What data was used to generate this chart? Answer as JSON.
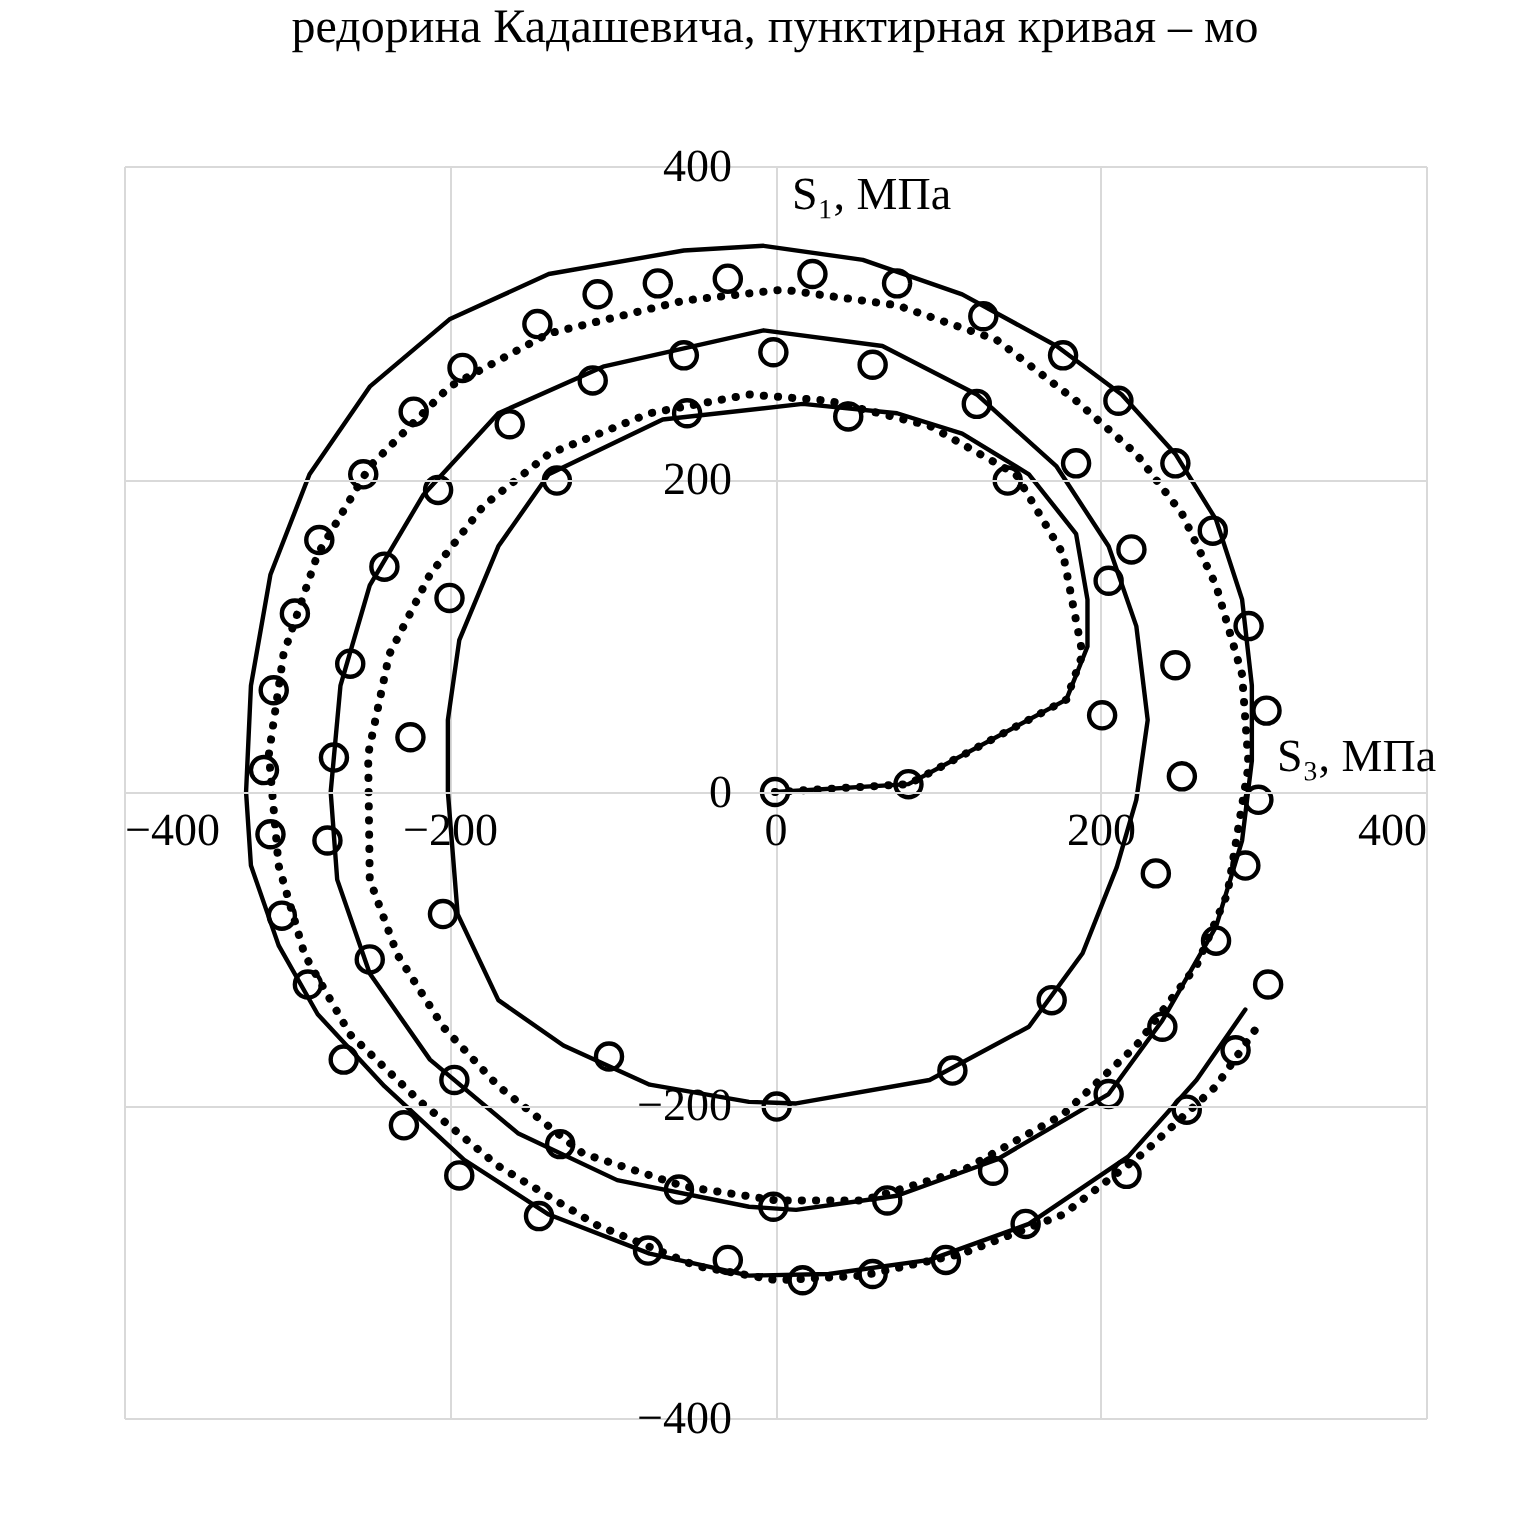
{
  "chart_data": {
    "type": "line",
    "xlabel": "S₃, МПа",
    "ylabel": "S₁, МПа",
    "xlim": [
      -400,
      400
    ],
    "ylim": [
      -400,
      400
    ],
    "xticks": [
      -400,
      -200,
      0,
      200,
      400
    ],
    "yticks": [
      -400,
      -200,
      0,
      200,
      400
    ],
    "grid": true,
    "annotations": [
      "редорина Кадашевича, пунктирная кривая – мо"
    ],
    "series": [
      {
        "color": "#000000",
        "line_style": "solid",
        "marker": "none",
        "x": [
          0,
          82,
          179,
          192,
          192,
          185,
          156,
          115,
          75,
          17,
          -69,
          -139,
          -170,
          -194,
          -201,
          -201,
          -195,
          -170,
          -130,
          -77,
          -16,
          13,
          95,
          156,
          189,
          210,
          222,
          229,
          222,
          205,
          173,
          124,
          66,
          -7,
          -105,
          -170,
          -216,
          -249,
          -267,
          -273,
          -269,
          -249,
          -212,
          -158,
          -97,
          -16,
          13,
          75,
          136,
          205,
          238,
          271,
          287,
          293,
          293,
          287,
          271,
          246,
          213,
          173,
          115,
          54,
          -7,
          -56,
          -139,
          -200,
          -249,
          -286,
          -310,
          -322,
          -325,
          -322,
          -305,
          -281,
          -240,
          -191,
          -139,
          -77,
          -16,
          33,
          95,
          156,
          217,
          259,
          289
        ],
        "values": [
          0,
          5,
          59,
          93,
          123,
          165,
          203,
          229,
          242,
          248,
          238,
          203,
          157,
          97,
          46,
          0,
          -78,
          -133,
          -162,
          -187,
          -198,
          -199,
          -184,
          -150,
          -103,
          -48,
          -5,
          46,
          106,
          157,
          208,
          254,
          285,
          295,
          272,
          242,
          190,
          132,
          68,
          0,
          -56,
          -116,
          -171,
          -218,
          -248,
          -265,
          -267,
          -258,
          -235,
          -193,
          -146,
          -86,
          -31,
          20,
          68,
          123,
          174,
          216,
          254,
          285,
          318,
          340,
          349,
          346,
          331,
          302,
          259,
          203,
          139,
          68,
          0,
          -47,
          -98,
          -142,
          -188,
          -235,
          -270,
          -295,
          -309,
          -308,
          -299,
          -276,
          -233,
          -184,
          -139
        ]
      },
      {
        "color": "#000000",
        "line_style": "dotted",
        "marker": "none",
        "x": [
          0,
          82,
          179,
          189,
          177,
          148,
          95,
          33,
          -16,
          -77,
          -139,
          -179,
          -212,
          -237,
          -250,
          -249,
          -232,
          -204,
          -170,
          -118,
          -56,
          1,
          54,
          115,
          177,
          222,
          259,
          278,
          291,
          287,
          271,
          250,
          222,
          185,
          136,
          75,
          5,
          -56,
          -139,
          -200,
          -249,
          -281,
          -302,
          -311,
          -305,
          -289,
          -261,
          -219,
          -170,
          -109,
          -48,
          1,
          54,
          115,
          177,
          226,
          271,
          295
        ],
        "values": [
          0,
          5,
          59,
          88,
          152,
          203,
          234,
          250,
          254,
          242,
          216,
          183,
          139,
          88,
          24,
          -56,
          -104,
          -150,
          -188,
          -231,
          -252,
          -261,
          -261,
          -242,
          -206,
          -162,
          -111,
          -65,
          17,
          75,
          132,
          178,
          216,
          250,
          289,
          311,
          321,
          314,
          293,
          259,
          208,
          152,
          88,
          24,
          -47,
          -104,
          -155,
          -197,
          -239,
          -277,
          -303,
          -312,
          -309,
          -295,
          -270,
          -231,
          -188,
          -152
        ]
      },
      {
        "type": "scatter",
        "color": "#000000",
        "marker": "circle",
        "x": [
          0,
          82,
          201,
          205,
          143,
          45,
          250,
          246,
          219,
          185,
          124,
          60,
          -1,
          302,
          291,
          269,
          246,
          211,
          177,
          128,
          75,
          23,
          -29,
          -72,
          -109,
          -146,
          -192,
          -222,
          -253,
          -280,
          -295,
          -308,
          -314,
          -56,
          -112,
          -163,
          -207,
          -240,
          -261,
          -271,
          -224,
          -200,
          -134,
          -54,
          -310,
          -275,
          -204,
          -303,
          -249,
          -287,
          -265,
          -197,
          -228,
          -102,
          -132,
          -194,
          -145,
          -59,
          -78,
          -29,
          1,
          -1,
          234,
          297,
          289,
          271,
          238,
          205,
          134,
          69,
          170,
          109,
          303,
          283,
          253,
          216,
          154,
          105,
          60,
          17
        ],
        "values": [
          0,
          5,
          49,
          135,
          199,
          240,
          10,
          81,
          155,
          210,
          248,
          273,
          281,
          52,
          106,
          167,
          210,
          250,
          279,
          304,
          325,
          331,
          328,
          325,
          318,
          299,
          271,
          243,
          203,
          161,
          114,
          65,
          14,
          279,
          263,
          235,
          193,
          144,
          82,
          22,
          35,
          124,
          199,
          242,
          -27,
          -31,
          -78,
          -79,
          -107,
          -123,
          -171,
          -184,
          -213,
          -169,
          -225,
          -245,
          -271,
          -254,
          -293,
          -299,
          -201,
          -265,
          -52,
          -5,
          -47,
          -95,
          -150,
          -193,
          -242,
          -261,
          -133,
          -178,
          -123,
          -165,
          -203,
          -244,
          -276,
          -299,
          -308,
          -312
        ]
      }
    ]
  }
}
